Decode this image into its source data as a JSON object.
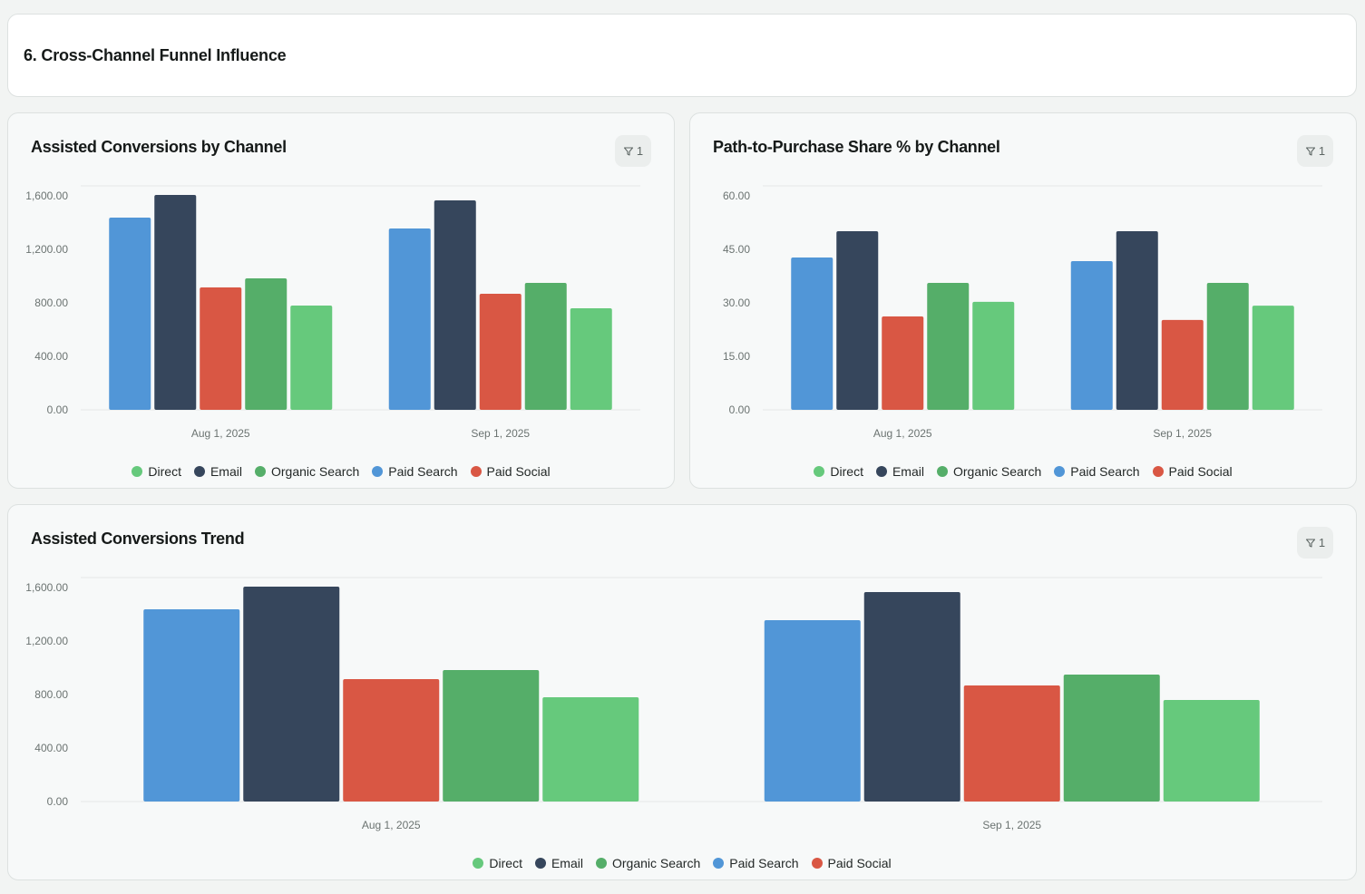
{
  "header": {
    "title": "6. Cross-Channel Funnel Influence"
  },
  "series_colors": {
    "Direct": "#66c97c",
    "Email": "#36465c",
    "Organic Search": "#55ae69",
    "Paid Search": "#5196d7",
    "Paid Social": "#d95744"
  },
  "legend": [
    "Direct",
    "Email",
    "Organic Search",
    "Paid Search",
    "Paid Social"
  ],
  "bar_order": [
    "Paid Search",
    "Email",
    "Paid Social",
    "Organic Search",
    "Direct"
  ],
  "cards": [
    {
      "title": "Assisted Conversions by Channel",
      "filter_count": "1"
    },
    {
      "title": "Path-to-Purchase Share % by Channel",
      "filter_count": "1"
    },
    {
      "title": "Assisted Conversions Trend",
      "filter_count": "1"
    }
  ],
  "chart_data": [
    {
      "type": "bar",
      "title": "Assisted Conversions by Channel",
      "xlabel": "",
      "ylabel": "",
      "categories": [
        "Aug 1, 2025",
        "Sep 1, 2025"
      ],
      "yticks": [
        "0.00",
        "400.00",
        "800.00",
        "1,200.00",
        "1,600.00"
      ],
      "ytick_values": [
        0,
        400,
        800,
        1200,
        1600
      ],
      "ylim": [
        0,
        1600
      ],
      "grid": true,
      "legend_position": "bottom",
      "series": [
        {
          "name": "Paid Search",
          "values": [
            1437,
            1356
          ]
        },
        {
          "name": "Email",
          "values": [
            1607,
            1566
          ]
        },
        {
          "name": "Paid Social",
          "values": [
            915,
            868
          ]
        },
        {
          "name": "Organic Search",
          "values": [
            983,
            949
          ]
        },
        {
          "name": "Direct",
          "values": [
            780,
            759
          ]
        }
      ]
    },
    {
      "type": "bar",
      "title": "Path-to-Purchase Share % by Channel",
      "xlabel": "",
      "ylabel": "",
      "categories": [
        "Aug 1, 2025",
        "Sep 1, 2025"
      ],
      "yticks": [
        "0.00",
        "15.00",
        "30.00",
        "45.00",
        "60.00"
      ],
      "ytick_values": [
        0,
        15,
        30,
        45,
        60
      ],
      "ylim": [
        0,
        60
      ],
      "grid": true,
      "legend_position": "bottom",
      "series": [
        {
          "name": "Paid Search",
          "values": [
            42.7,
            41.7
          ]
        },
        {
          "name": "Email",
          "values": [
            50.1,
            50.1
          ]
        },
        {
          "name": "Paid Social",
          "values": [
            26.2,
            25.2
          ]
        },
        {
          "name": "Organic Search",
          "values": [
            35.6,
            35.6
          ]
        },
        {
          "name": "Direct",
          "values": [
            30.3,
            29.2
          ]
        }
      ]
    },
    {
      "type": "bar",
      "title": "Assisted Conversions Trend",
      "xlabel": "",
      "ylabel": "",
      "categories": [
        "Aug 1, 2025",
        "Sep 1, 2025"
      ],
      "yticks": [
        "0.00",
        "400.00",
        "800.00",
        "1,200.00",
        "1,600.00"
      ],
      "ytick_values": [
        0,
        400,
        800,
        1200,
        1600
      ],
      "ylim": [
        0,
        1600
      ],
      "grid": true,
      "legend_position": "bottom",
      "series": [
        {
          "name": "Paid Search",
          "values": [
            1437,
            1356
          ]
        },
        {
          "name": "Email",
          "values": [
            1607,
            1566
          ]
        },
        {
          "name": "Paid Social",
          "values": [
            915,
            868
          ]
        },
        {
          "name": "Organic Search",
          "values": [
            983,
            949
          ]
        },
        {
          "name": "Direct",
          "values": [
            780,
            759
          ]
        }
      ]
    }
  ]
}
